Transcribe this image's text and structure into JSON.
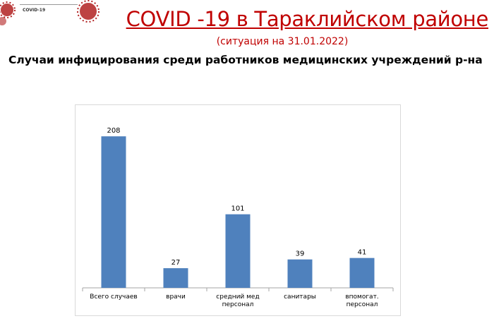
{
  "header": {
    "logo_text": "COVID-19",
    "title": "COVID -19 в Тараклийском районе",
    "subtitle": "(ситуация на  31.01.2022)",
    "heading": "Случаи инфицирования среди работников медицинских учреждений р-на"
  },
  "colors": {
    "bar": "#4f81bd",
    "title": "#c00000",
    "virus": "#b22222"
  },
  "chart_data": {
    "type": "bar",
    "categories": [
      [
        "Всего случаев"
      ],
      [
        "врачи"
      ],
      [
        "средний мед",
        "персонал"
      ],
      [
        "санитары"
      ],
      [
        "впомогат.",
        "персонал"
      ]
    ],
    "values": [
      208,
      27,
      101,
      39,
      41
    ],
    "title": "",
    "xlabel": "",
    "ylabel": "",
    "ylim": [
      0,
      215
    ],
    "grid": false,
    "legend": "none"
  }
}
